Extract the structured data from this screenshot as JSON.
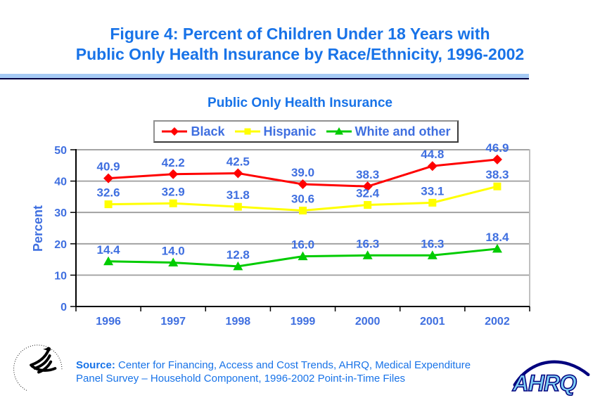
{
  "title": {
    "line1": "Figure 4: Percent of Children Under 18 Years with",
    "line2": "Public Only Health Insurance by Race/Ethnicity, 1996-2002"
  },
  "chart_data": {
    "type": "line",
    "title": "Public Only Health Insurance",
    "xlabel": "",
    "ylabel": "Percent",
    "ylim": [
      0,
      50
    ],
    "yticks": [
      0,
      10,
      20,
      30,
      40,
      50
    ],
    "grid": true,
    "legend_position": "top",
    "data_labels": true,
    "categories": [
      "1996",
      "1997",
      "1998",
      "1999",
      "2000",
      "2001",
      "2002"
    ],
    "series": [
      {
        "name": "Black",
        "color": "#FF0000",
        "marker": "diamond",
        "values": [
          40.9,
          42.2,
          42.5,
          39.0,
          38.3,
          44.8,
          46.9
        ]
      },
      {
        "name": "Hispanic",
        "color": "#FFFF00",
        "marker": "square",
        "values": [
          32.6,
          32.9,
          31.8,
          30.6,
          32.4,
          33.1,
          38.3
        ]
      },
      {
        "name": "White and other",
        "color": "#00CC00",
        "marker": "triangle",
        "values": [
          14.4,
          14.0,
          12.8,
          16.0,
          16.3,
          16.3,
          18.4
        ]
      }
    ]
  },
  "footer": {
    "source_label": "Source:",
    "source_line1_rest": " Center for Financing, Access and Cost Trends, AHRQ, Medical Expenditure",
    "source_line2": "Panel Survey – Household Component, 1996-2002 Point-in-Time Files"
  },
  "logos": {
    "ahrq_text": "AHRQ"
  },
  "colors": {
    "background": "#FFFFFF",
    "title_text": "#1873E8",
    "subtitle_text": "#1873E8",
    "source_text": "#1873E8",
    "chart_text": "#3F6FE0",
    "grid": "#9C9C9C",
    "axis": "#000000",
    "plot_border": "#ABABAB",
    "rule_light": "#A6CBF5",
    "rule_dark": "#000040",
    "legend_border_light": "#909090",
    "legend_border_dark": "#3A3A3A",
    "ahrq_fill": "#7FD0F5",
    "ahrq_outline": "#00007E",
    "hhs_black": "#000000"
  }
}
